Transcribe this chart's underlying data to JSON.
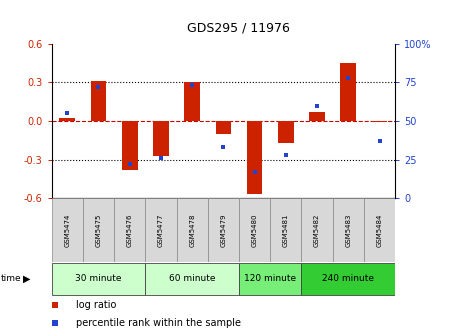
{
  "title": "GDS295 / 11976",
  "samples": [
    "GSM5474",
    "GSM5475",
    "GSM5476",
    "GSM5477",
    "GSM5478",
    "GSM5479",
    "GSM5480",
    "GSM5481",
    "GSM5482",
    "GSM5483",
    "GSM5484"
  ],
  "log_ratio": [
    0.02,
    0.31,
    -0.38,
    -0.27,
    0.3,
    -0.1,
    -0.57,
    -0.17,
    0.07,
    0.45,
    -0.01
  ],
  "percentile": [
    55,
    72,
    22,
    26,
    73,
    33,
    17,
    28,
    60,
    78,
    37
  ],
  "ylim": [
    -0.6,
    0.6
  ],
  "yticks_left": [
    -0.6,
    -0.3,
    0.0,
    0.3,
    0.6
  ],
  "yticks_right": [
    0,
    25,
    50,
    75,
    100
  ],
  "bar_color": "#cc2200",
  "dot_color": "#2244cc",
  "zero_line_color": "#cc0000",
  "bg_color": "#ffffff",
  "bar_width": 0.5,
  "group_info": [
    {
      "label": "30 minute",
      "start": 0,
      "end": 3,
      "color": "#ccffcc"
    },
    {
      "label": "60 minute",
      "start": 3,
      "end": 6,
      "color": "#ccffcc"
    },
    {
      "label": "120 minute",
      "start": 6,
      "end": 8,
      "color": "#77ee77"
    },
    {
      "label": "240 minute",
      "start": 8,
      "end": 11,
      "color": "#33cc33"
    }
  ]
}
